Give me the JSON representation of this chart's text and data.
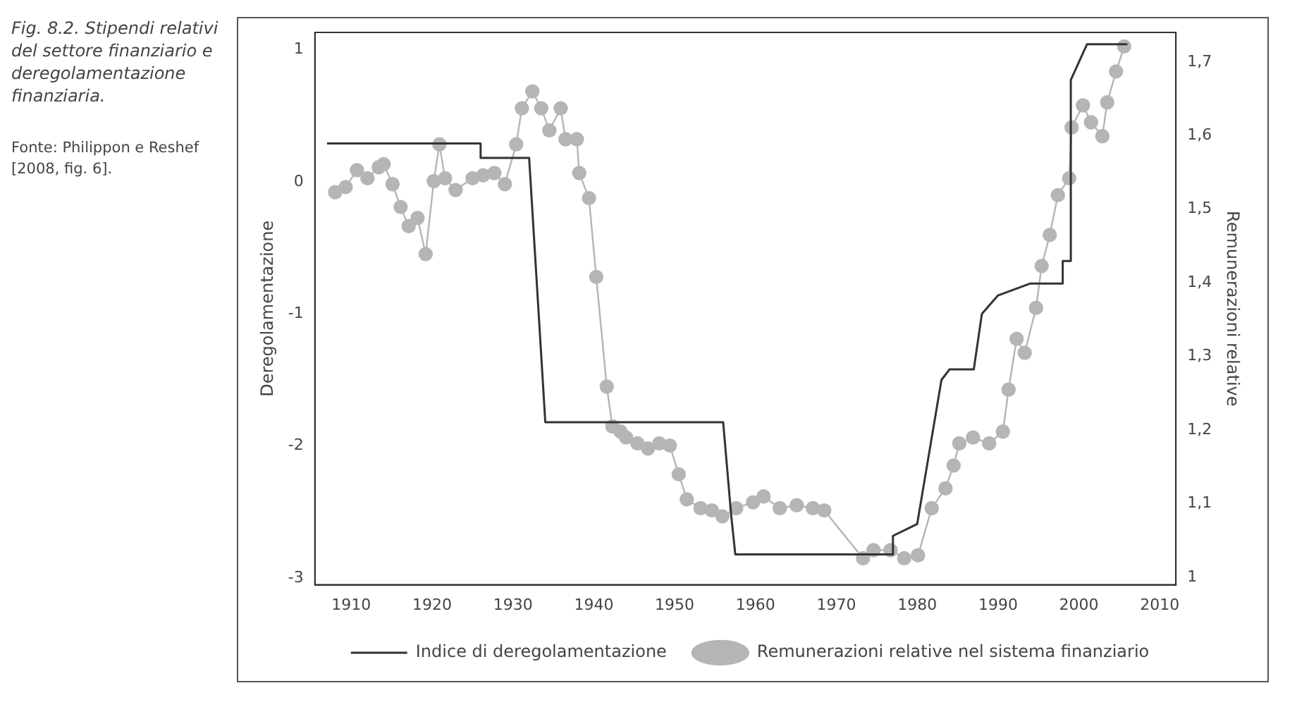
{
  "chart_data": {
    "type": "line",
    "title": "Fig. 8.2. Stipendi relativi del settore finanziario e deregolamentazione finanziaria.",
    "annotations": [
      "Fonte: Philippon e Reshef [2008, fig. 6]."
    ],
    "ylabel": "Deregolamentazione",
    "y2label": "Remunerazioni relative",
    "xlim": [
      1905.5,
      2012
    ],
    "xticks": [
      1910,
      1920,
      1930,
      1940,
      1950,
      1960,
      1970,
      1980,
      1990,
      2000,
      2010
    ],
    "ylim": [
      -3.05,
      1.13
    ],
    "yticks": [
      -3,
      -2,
      -1,
      0,
      1
    ],
    "y2lim": [
      0.99,
      1.74
    ],
    "y2ticks": [
      1,
      {
        "value": 1.1,
        "label": "1,1"
      },
      {
        "value": 1.2,
        "label": "1,2"
      },
      {
        "value": 1.3,
        "label": "1,3"
      },
      {
        "value": 1.4,
        "label": "1,4"
      },
      {
        "value": 1.5,
        "label": "1,5"
      },
      {
        "value": 1.6,
        "label": "1,6"
      },
      {
        "value": 1.7,
        "label": "1,7"
      }
    ],
    "grid": false,
    "legend": "bottom",
    "series": [
      {
        "name": "Indice di deregolamentazione",
        "color": "#333333",
        "marker": "none",
        "x": [
          1907,
          1926,
          1926,
          1932,
          1934,
          1956,
          1957,
          1957.5,
          1977,
          1977,
          1980,
          1983,
          1984,
          1987,
          1988,
          1990,
          1994,
          1998,
          1998,
          1999,
          1999,
          2001,
          2006
        ],
        "values": [
          0.29,
          0.29,
          0.18,
          0.18,
          -1.82,
          -1.82,
          -2.53,
          -2.82,
          -2.82,
          -2.68,
          -2.59,
          -1.5,
          -1.42,
          -1.42,
          -1.0,
          -0.86,
          -0.77,
          -0.77,
          -0.6,
          -0.6,
          0.77,
          1.04,
          1.04
        ]
      },
      {
        "name": "Remunerazioni relative nel sistema finanziario",
        "color": "#b5b5b5",
        "marker": "circle",
        "axis": "y2",
        "x": [
          1908,
          1909.3,
          1910.7,
          1912,
          1913.4,
          1914,
          1915.1,
          1916.1,
          1917.1,
          1918.2,
          1919.2,
          1920.2,
          1920.9,
          1921.6,
          1922.9,
          1925,
          1926.3,
          1927.7,
          1929,
          1930.4,
          1931.1,
          1932.4,
          1933.5,
          1934.5,
          1935.9,
          1936.5,
          1937.9,
          1938.2,
          1939.4,
          1940.3,
          1941.6,
          1942.3,
          1943.3,
          1944,
          1945.4,
          1946.7,
          1948.1,
          1949.4,
          1950.5,
          1951.5,
          1953.2,
          1954.6,
          1955.9,
          1957.6,
          1959.7,
          1961,
          1963,
          1965.1,
          1967.1,
          1968.5,
          1973.3,
          1974.6,
          1976.7,
          1978.4,
          1980.1,
          1981.8,
          1983.5,
          1984.5,
          1985.2,
          1986.9,
          1988.9,
          1990.6,
          1991.3,
          1992.3,
          1993.3,
          1994.7,
          1995.4,
          1996.4,
          1997.4,
          1998.8,
          1999.1,
          2000.5,
          2001.5,
          2002.9,
          2003.5,
          2004.6,
          2005.6
        ],
        "values": [
          1.523,
          1.53,
          1.553,
          1.542,
          1.557,
          1.561,
          1.534,
          1.503,
          1.477,
          1.488,
          1.439,
          1.538,
          1.588,
          1.542,
          1.526,
          1.542,
          1.546,
          1.549,
          1.534,
          1.588,
          1.637,
          1.66,
          1.637,
          1.607,
          1.637,
          1.595,
          1.595,
          1.549,
          1.515,
          1.408,
          1.259,
          1.205,
          1.198,
          1.19,
          1.182,
          1.175,
          1.182,
          1.179,
          1.14,
          1.106,
          1.094,
          1.091,
          1.083,
          1.094,
          1.102,
          1.11,
          1.094,
          1.098,
          1.094,
          1.091,
          1.026,
          1.037,
          1.037,
          1.026,
          1.03,
          1.094,
          1.121,
          1.152,
          1.182,
          1.19,
          1.182,
          1.198,
          1.255,
          1.324,
          1.305,
          1.366,
          1.423,
          1.465,
          1.519,
          1.542,
          1.611,
          1.641,
          1.618,
          1.599,
          1.645,
          1.687,
          1.721
        ]
      }
    ]
  }
}
